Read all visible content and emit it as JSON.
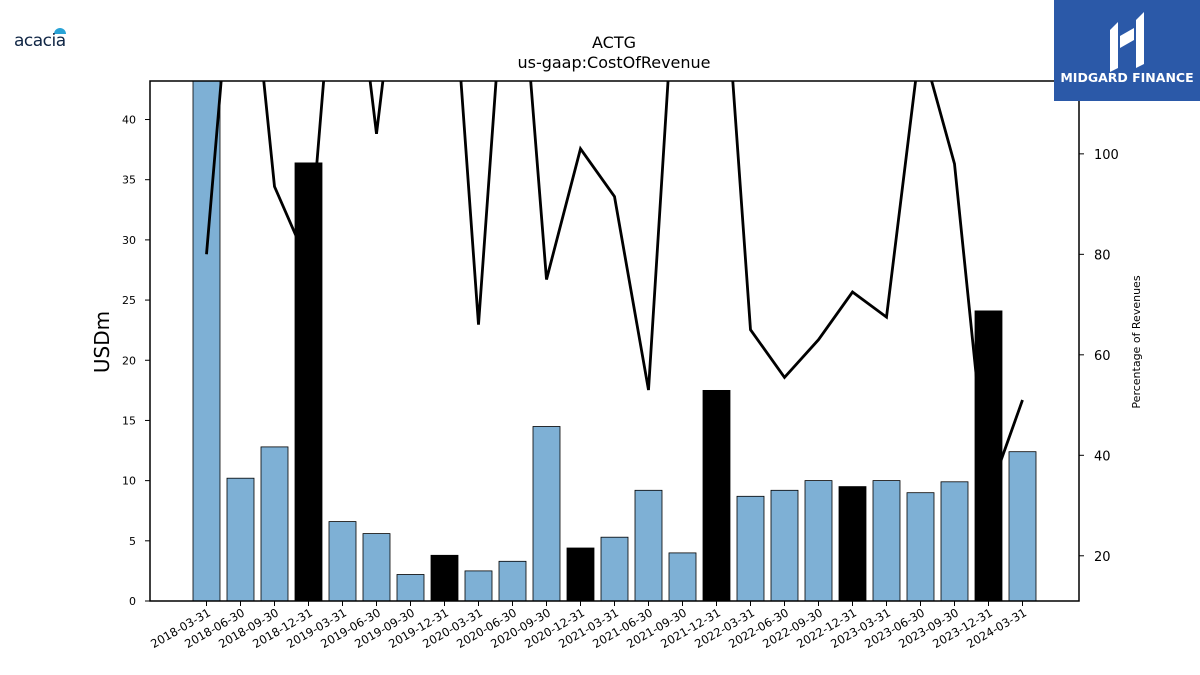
{
  "logo": {
    "company_text": "acacia",
    "brand_name": "MIDGARD FINANCE",
    "brand_color": "#2b59a8"
  },
  "chart_data": {
    "type": "bar",
    "title": "ACTG",
    "subtitle": "us-gaap:CostOfRevenue",
    "ylabel": "USDm",
    "ylabel_right": "Percentage of Revenues",
    "ylim": [
      0,
      43.2
    ],
    "ylim_right": [
      11,
      114.5
    ],
    "yticks": [
      0,
      5,
      10,
      15,
      20,
      25,
      30,
      35,
      40
    ],
    "yticks_right": [
      20,
      40,
      60,
      80,
      100
    ],
    "categories": [
      "2018-03-31",
      "2018-06-30",
      "2018-09-30",
      "2018-12-31",
      "2019-03-31",
      "2019-06-30",
      "2019-09-30",
      "2019-12-31",
      "2020-03-31",
      "2020-06-30",
      "2020-09-30",
      "2020-12-31",
      "2021-03-31",
      "2021-06-30",
      "2021-09-30",
      "2021-12-31",
      "2022-03-31",
      "2022-06-30",
      "2022-09-30",
      "2022-12-31",
      "2023-03-31",
      "2023-06-30",
      "2023-09-30",
      "2023-12-31",
      "2024-03-31"
    ],
    "series": [
      {
        "values": [
          43.2,
          10.2,
          12.8,
          36.4,
          6.6,
          5.6,
          2.2,
          3.8,
          2.5,
          3.3,
          14.5,
          4.4,
          5.3,
          9.2,
          4.0,
          17.5,
          8.7,
          9.2,
          10.0,
          9.5,
          10.0,
          9.0,
          9.9,
          24.1,
          12.4
        ],
        "highlight": [
          false,
          false,
          false,
          true,
          false,
          false,
          false,
          true,
          false,
          false,
          false,
          true,
          false,
          false,
          false,
          true,
          false,
          false,
          false,
          true,
          false,
          false,
          false,
          true,
          false
        ]
      },
      {
        "axis": "right",
        "type": "line",
        "values": [
          80,
          160,
          93.5,
          78,
          160,
          104,
          160,
          160,
          66,
          160,
          75,
          101,
          91.5,
          53,
          160,
          160,
          65,
          55.5,
          63,
          72.5,
          67.5,
          122.5,
          98,
          32,
          51
        ]
      }
    ],
    "colors": {
      "bar": "#7eb0d5",
      "bar_highlight": "#000000",
      "line": "#000000"
    },
    "grid": false
  }
}
